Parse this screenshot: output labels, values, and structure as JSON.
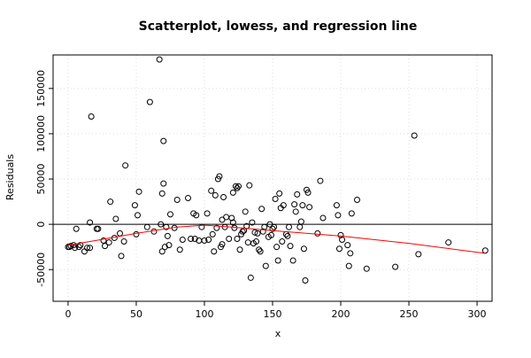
{
  "chart_data": {
    "type": "scatter",
    "title": "Scatterplot, lowess, and regression line",
    "x_label": "x",
    "y_label": "Residuals",
    "x": [
      0,
      1,
      2,
      4,
      5,
      6,
      8,
      9,
      12,
      14,
      16,
      16,
      17,
      21,
      22,
      26,
      27,
      30,
      31,
      34,
      35,
      38,
      39,
      41,
      42,
      49,
      50,
      51,
      52,
      58,
      60,
      63,
      67,
      68,
      69,
      69,
      70,
      70,
      71,
      72,
      73,
      74,
      75,
      78,
      80,
      82,
      84,
      88,
      90,
      92,
      93,
      94,
      96,
      98,
      100,
      102,
      103,
      105,
      106,
      107,
      108,
      109,
      110,
      111,
      112,
      113,
      113,
      114,
      115,
      116,
      118,
      120,
      121,
      121,
      122,
      123,
      124,
      124,
      125,
      126,
      127,
      128,
      129,
      130,
      131,
      132,
      133,
      134,
      135,
      136,
      137,
      138,
      139,
      140,
      141,
      142,
      143,
      144,
      145,
      147,
      148,
      149,
      150,
      151,
      152,
      153,
      154,
      155,
      156,
      157,
      158,
      160,
      161,
      162,
      163,
      165,
      166,
      167,
      168,
      170,
      171,
      172,
      173,
      174,
      175,
      176,
      177,
      183,
      185,
      187,
      197,
      198,
      199,
      200,
      201,
      205,
      206,
      207,
      208,
      212,
      219,
      240,
      254,
      257,
      279,
      306
    ],
    "values": [
      -25000,
      -25000,
      -24000,
      -23000,
      -26000,
      -5000,
      -25000,
      -23000,
      -30000,
      -26000,
      -26000,
      2000,
      119000,
      -5000,
      -5000,
      -18000,
      -24000,
      -20000,
      25000,
      -15000,
      6000,
      -10000,
      -35000,
      -19000,
      65000,
      21000,
      -11000,
      10000,
      36000,
      -3000,
      135000,
      -8000,
      182000,
      0,
      34000,
      -30000,
      92000,
      45000,
      -25000,
      -3000,
      -13000,
      -23000,
      11000,
      -4000,
      27000,
      -28000,
      -17000,
      29000,
      -16000,
      12000,
      -16000,
      10000,
      -18000,
      -3000,
      -18000,
      12000,
      -17000,
      37000,
      -11000,
      -30000,
      32000,
      -4000,
      50000,
      53000,
      -25000,
      5000,
      -22000,
      30000,
      -3000,
      8000,
      -16000,
      7000,
      35000,
      2000,
      -4000,
      42000,
      40000,
      -16000,
      42000,
      -28000,
      -11000,
      -8000,
      -7000,
      14000,
      -2000,
      -20000,
      43000,
      -59000,
      2000,
      -21000,
      -9000,
      -19000,
      -10000,
      -28000,
      -30000,
      17000,
      -8000,
      -3000,
      -46000,
      -14000,
      0,
      -12000,
      -5000,
      -3000,
      28000,
      -25000,
      -40000,
      34000,
      18000,
      -19000,
      21000,
      -11000,
      -13000,
      -3000,
      -24000,
      -40000,
      22000,
      14000,
      33000,
      -3000,
      3000,
      21000,
      -27000,
      -62000,
      38000,
      35000,
      19000,
      -10000,
      48000,
      7000,
      21000,
      10000,
      -27000,
      -12000,
      -17000,
      -23000,
      -46000,
      -32000,
      12000,
      27000,
      -49000,
      -47000,
      98000,
      -33000,
      -20000,
      -29000
    ],
    "color": "#000000",
    "lowess": {
      "x": [
        0,
        20,
        50,
        80,
        100,
        120,
        150,
        200,
        250,
        306
      ],
      "values": [
        -23000,
        -18000,
        -10000,
        -3000,
        -1000,
        -3000,
        -7000,
        -13000,
        -21000,
        -32000
      ],
      "color": "#ff0000"
    },
    "regression_line": {
      "value": 0,
      "color": "#000000"
    },
    "xlim": [
      -11,
      311
    ],
    "ylim": [
      -85000,
      187000
    ],
    "xticks": [
      0,
      50,
      100,
      150,
      200,
      250,
      300
    ],
    "yticks": [
      -50000,
      0,
      50000,
      100000,
      150000
    ],
    "grid": true
  }
}
